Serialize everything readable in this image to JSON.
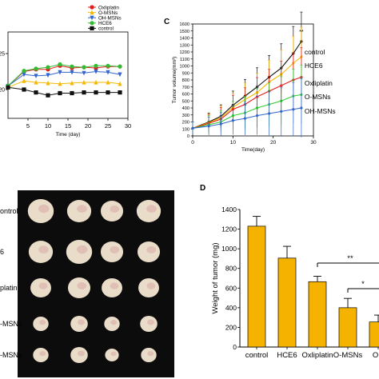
{
  "panel_letters": {
    "c": "C",
    "d": "D"
  },
  "photo": {
    "row_labels": [
      "ontrol",
      "6",
      "platin",
      "-MSNs",
      "-MSNs"
    ],
    "colors": {
      "background": "#0c0c0c",
      "tumor": "#e9dcc8",
      "tumor_tint": "#d8a9a6"
    }
  },
  "chart_data": [
    {
      "type": "line",
      "panel": "B",
      "xlabel": "Time (day)",
      "ylabel": "",
      "xlim": [
        0,
        30
      ],
      "ylim": [
        16,
        28
      ],
      "x_ticks": [
        5,
        10,
        15,
        20,
        25,
        30
      ],
      "y_ticks": [
        20,
        25
      ],
      "x": [
        0,
        4,
        7,
        10,
        13,
        16,
        19,
        22,
        25,
        28
      ],
      "legend_position": "top-right",
      "series": [
        {
          "name": "Oxliplatin",
          "color": "#e41a1c",
          "marker": "circle",
          "values": [
            20.5,
            22.5,
            22.8,
            22.8,
            23.3,
            23.0,
            23.1,
            23.0,
            23.2,
            23.2
          ]
        },
        {
          "name": "O-MSNs",
          "color": "#f5b800",
          "marker": "triangle-up",
          "values": [
            20.3,
            21.2,
            21.0,
            20.9,
            20.8,
            20.9,
            21.0,
            21.0,
            21.0,
            20.8
          ]
        },
        {
          "name": "OH-MSNs",
          "color": "#3366cc",
          "marker": "triangle-down",
          "values": [
            20.5,
            22.1,
            21.9,
            22.0,
            22.4,
            22.4,
            22.3,
            22.5,
            22.4,
            22.1
          ]
        },
        {
          "name": "HCE6",
          "color": "#33bb33",
          "marker": "circle",
          "values": [
            20.5,
            22.6,
            22.9,
            23.1,
            23.5,
            23.2,
            23.1,
            23.3,
            23.3,
            23.2
          ]
        },
        {
          "name": "control",
          "color": "#111111",
          "marker": "square",
          "values": [
            20.3,
            20.0,
            19.6,
            19.2,
            19.5,
            19.5,
            19.6,
            19.6,
            19.6,
            19.6
          ]
        }
      ]
    },
    {
      "type": "line",
      "panel": "C",
      "xlabel": "Time(day)",
      "ylabel": "Tumor volume(mm³)",
      "xlim": [
        0,
        30
      ],
      "ylim": [
        0,
        1600
      ],
      "x_ticks": [
        0,
        10,
        20,
        30
      ],
      "y_ticks": [
        0,
        100,
        200,
        300,
        400,
        500,
        600,
        700,
        800,
        900,
        1000,
        1100,
        1200,
        1300,
        1400,
        1500,
        1600
      ],
      "x": [
        0,
        4,
        7,
        10,
        13,
        16,
        19,
        22,
        25,
        27
      ],
      "significance": "**",
      "series": [
        {
          "name": "control",
          "color": "#111111",
          "values": [
            110,
            200,
            280,
            440,
            570,
            700,
            840,
            970,
            1180,
            1350
          ]
        },
        {
          "name": "HCE6",
          "color": "#f5b800",
          "values": [
            110,
            190,
            260,
            410,
            520,
            620,
            770,
            880,
            1040,
            1130
          ]
        },
        {
          "name": "Oxliplatin",
          "color": "#e41a1c",
          "values": [
            110,
            180,
            240,
            380,
            450,
            560,
            640,
            720,
            800,
            840
          ]
        },
        {
          "name": "O-MSNs",
          "color": "#33cc33",
          "values": [
            110,
            160,
            200,
            290,
            330,
            400,
            450,
            500,
            570,
            590
          ]
        },
        {
          "name": "OH-MSNs",
          "color": "#3366cc",
          "values": [
            110,
            140,
            170,
            220,
            250,
            290,
            320,
            350,
            380,
            400
          ]
        }
      ]
    },
    {
      "type": "bar",
      "panel": "D",
      "ylabel": "Weight of tumor (mg)",
      "ylim": [
        0,
        1400
      ],
      "y_ticks": [
        0,
        200,
        400,
        600,
        800,
        1000,
        1200,
        1400
      ],
      "categories": [
        "control",
        "HCE6",
        "Oxliplatin",
        "O-MSNs",
        "OH-MSNs"
      ],
      "tick_labels": [
        "control",
        "HCE6",
        "Oxliplatin",
        "O-MSNs",
        "OH"
      ],
      "values": [
        1230,
        905,
        665,
        400,
        255
      ],
      "errors": [
        100,
        120,
        55,
        95,
        70
      ],
      "bar_color": "#f5b300",
      "significance": [
        "**",
        "*"
      ]
    }
  ]
}
